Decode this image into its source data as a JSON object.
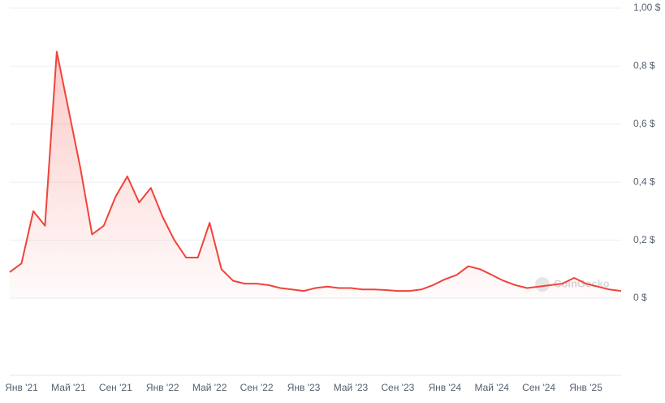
{
  "chart_data": {
    "type": "line",
    "watermark": "CoinGecko",
    "color": "#f0433a",
    "grid": true,
    "x": [
      "2020-12",
      "2021-01",
      "2021-02",
      "2021-03",
      "2021-04",
      "2021-05",
      "2021-06",
      "2021-07",
      "2021-08",
      "2021-09",
      "2021-10",
      "2021-11",
      "2021-12",
      "2022-01",
      "2022-02",
      "2022-03",
      "2022-04",
      "2022-05",
      "2022-06",
      "2022-07",
      "2022-08",
      "2022-09",
      "2022-10",
      "2022-11",
      "2022-12",
      "2023-01",
      "2023-02",
      "2023-03",
      "2023-04",
      "2023-05",
      "2023-06",
      "2023-07",
      "2023-08",
      "2023-09",
      "2023-10",
      "2023-11",
      "2023-12",
      "2024-01",
      "2024-02",
      "2024-03",
      "2024-04",
      "2024-05",
      "2024-06",
      "2024-07",
      "2024-08",
      "2024-09",
      "2024-10",
      "2024-11",
      "2024-12",
      "2025-01",
      "2025-02",
      "2025-03",
      "2025-04"
    ],
    "values": [
      0.09,
      0.12,
      0.3,
      0.25,
      0.85,
      0.65,
      0.45,
      0.22,
      0.25,
      0.35,
      0.42,
      0.33,
      0.38,
      0.28,
      0.2,
      0.14,
      0.14,
      0.26,
      0.1,
      0.06,
      0.05,
      0.05,
      0.045,
      0.035,
      0.03,
      0.025,
      0.035,
      0.04,
      0.035,
      0.035,
      0.03,
      0.03,
      0.028,
      0.025,
      0.025,
      0.03,
      0.045,
      0.065,
      0.08,
      0.11,
      0.1,
      0.08,
      0.06,
      0.045,
      0.035,
      0.04,
      0.045,
      0.05,
      0.07,
      0.05,
      0.04,
      0.03,
      0.025
    ],
    "xlim": [
      "2020-12",
      "2025-04"
    ],
    "xticks": [
      {
        "value": "2021-01",
        "label": "Янв '21"
      },
      {
        "value": "2021-05",
        "label": "Май '21"
      },
      {
        "value": "2021-09",
        "label": "Сен '21"
      },
      {
        "value": "2022-01",
        "label": "Янв '22"
      },
      {
        "value": "2022-05",
        "label": "Май '22"
      },
      {
        "value": "2022-09",
        "label": "Сен '22"
      },
      {
        "value": "2023-01",
        "label": "Янв '23"
      },
      {
        "value": "2023-05",
        "label": "Май '23"
      },
      {
        "value": "2023-09",
        "label": "Сен '23"
      },
      {
        "value": "2024-01",
        "label": "Янв '24"
      },
      {
        "value": "2024-05",
        "label": "Май '24"
      },
      {
        "value": "2024-09",
        "label": "Сен '24"
      },
      {
        "value": "2025-01",
        "label": "Янв '25"
      }
    ],
    "ylim": [
      0,
      1
    ],
    "yticks": [
      {
        "value": 0,
        "label": "0 $"
      },
      {
        "value": 0.2,
        "label": "0,2 $"
      },
      {
        "value": 0.4,
        "label": "0,4 $"
      },
      {
        "value": 0.6,
        "label": "0,6 $"
      },
      {
        "value": 0.8,
        "label": "0,8 $"
      },
      {
        "value": 1,
        "label": "1,00 $"
      }
    ]
  }
}
